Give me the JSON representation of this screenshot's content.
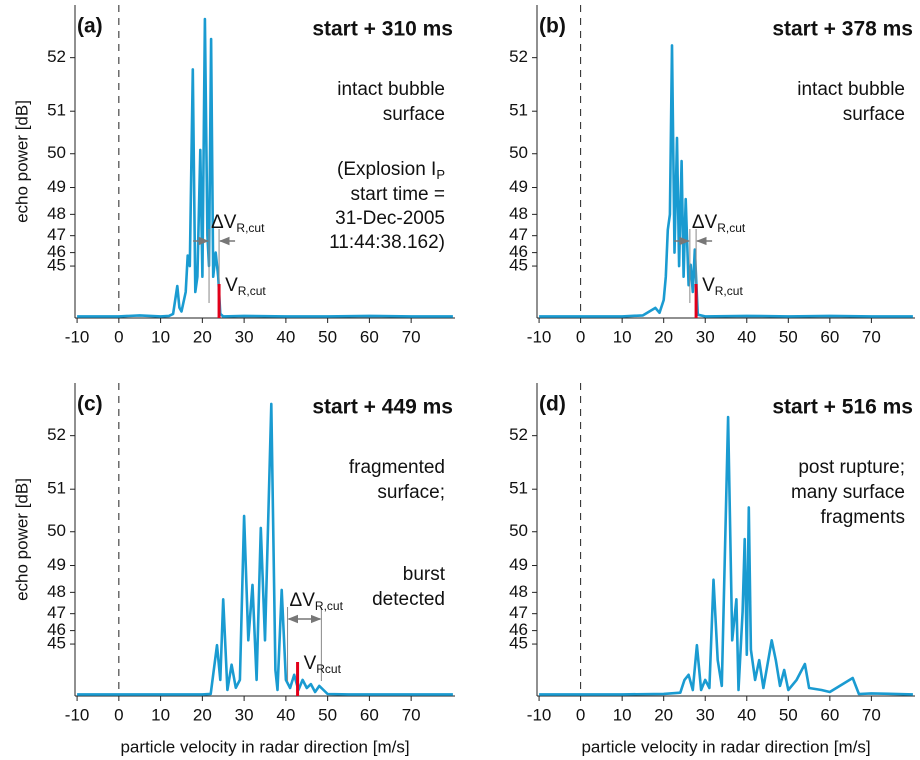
{
  "chart_data": [
    {
      "type": "line",
      "panel_label": "(a)",
      "title": "start + 310 ms",
      "note": [
        "intact bubble",
        "surface"
      ],
      "explosion": {
        "prefix": "(Explosion I",
        "sub": "P",
        "lines": [
          "start time =",
          "31-Dec-2005",
          "11:44:38.162)"
        ]
      },
      "cut": {
        "x": 24,
        "label": "V",
        "sub": "R,cut",
        "color": "#e2001a"
      },
      "delta": {
        "range": [
          21.6,
          24
        ],
        "label": "ΔV",
        "sub": "R,cut"
      },
      "xlim": [
        -10.5,
        80.5
      ],
      "ylim": [
        0,
        52.8
      ],
      "yscale": "power-db",
      "xticks": [
        -10,
        0,
        10,
        20,
        30,
        40,
        50,
        60,
        70
      ],
      "yticks": [
        45,
        46,
        47,
        48,
        49,
        50,
        51,
        52
      ],
      "ylabel": "echo power [dB]",
      "color": "#1a9bd1",
      "zero_line": true,
      "x": [
        -10,
        0,
        5,
        10,
        12,
        13,
        14,
        14.5,
        15,
        16,
        16.5,
        17,
        17.7,
        18.3,
        18.8,
        19.5,
        20,
        20.6,
        21.2,
        21.6,
        22.1,
        22.6,
        23.2,
        23.8,
        24.3,
        25,
        30,
        40,
        50,
        60,
        70,
        80
      ],
      "values": [
        30,
        30,
        32,
        30,
        31,
        34,
        42.9,
        38,
        36,
        42,
        45.8,
        45,
        51.8,
        42,
        44,
        50.1,
        44,
        52.6,
        47,
        45,
        52.3,
        44,
        46,
        44,
        34,
        30,
        31,
        30,
        30,
        31,
        30,
        30
      ]
    },
    {
      "type": "line",
      "panel_label": "(b)",
      "title": "start + 378 ms",
      "note": [
        "intact bubble",
        "surface"
      ],
      "cut": {
        "x": 27.8,
        "label": "V",
        "sub": "R,cut",
        "color": "#e2001a"
      },
      "delta": {
        "range": [
          26.3,
          27.8
        ],
        "label": "ΔV",
        "sub": "R,cut"
      },
      "xlim": [
        -10.5,
        80.5
      ],
      "ylim": [
        0,
        52.8
      ],
      "yscale": "power-db",
      "xticks": [
        -10,
        0,
        10,
        20,
        30,
        40,
        50,
        60,
        70
      ],
      "yticks": [
        45,
        46,
        47,
        48,
        49,
        50,
        51,
        52
      ],
      "color": "#1a9bd1",
      "zero_line": true,
      "x": [
        -10,
        0,
        10,
        15,
        18,
        19,
        20,
        20.5,
        21,
        21.5,
        22,
        22.6,
        23.2,
        23.7,
        24.3,
        24.8,
        25.3,
        26,
        26.5,
        27,
        27.5,
        28.2,
        30,
        40,
        50,
        60,
        70,
        80
      ],
      "values": [
        30,
        30,
        30,
        32,
        37.9,
        35,
        40.4,
        44,
        47.3,
        48,
        52.2,
        46,
        50.4,
        45,
        49.8,
        44,
        48.6,
        43,
        45.1,
        42,
        46.2,
        33,
        30,
        31,
        30,
        31,
        30,
        30
      ]
    },
    {
      "type": "line",
      "panel_label": "(c)",
      "title": "start + 449 ms",
      "note": [
        "fragmented",
        "surface;"
      ],
      "alert": [
        "burst",
        "detected"
      ],
      "alert_color": "#e2001a",
      "cut": {
        "x": 42.8,
        "label": "V",
        "sub": "Rcut",
        "color": "#e2001a"
      },
      "delta": {
        "range": [
          40.4,
          48.5
        ],
        "label": "ΔV",
        "sub": "R,cut"
      },
      "xlim": [
        -10.5,
        80.5
      ],
      "ylim": [
        0,
        52.8
      ],
      "yscale": "power-db",
      "xticks": [
        -10,
        0,
        10,
        20,
        30,
        40,
        50,
        60,
        70
      ],
      "yticks": [
        45,
        46,
        47,
        48,
        49,
        50,
        51,
        52
      ],
      "ylabel": "echo power [dB]",
      "xlabel": "particle velocity in radar direction [m/s]",
      "color": "#1a9bd1",
      "zero_line": true,
      "x": [
        -10,
        0,
        10,
        20,
        22,
        23.5,
        24.3,
        25,
        26,
        27,
        28,
        29,
        30,
        31,
        32,
        33,
        34,
        35,
        36.5,
        37.5,
        38,
        39,
        40,
        41,
        42,
        43,
        44,
        45,
        46,
        47,
        48,
        49,
        50,
        55,
        60,
        70,
        80
      ],
      "values": [
        30,
        30,
        30,
        30,
        31,
        44.9,
        39.9,
        47.7,
        35.6,
        42.8,
        37,
        39.9,
        50.4,
        45.3,
        48.3,
        39.9,
        50.1,
        45.3,
        52.5,
        42,
        35.6,
        48.1,
        39.9,
        36.9,
        41.1,
        35.6,
        39.9,
        36.9,
        38.6,
        33.9,
        37.9,
        35.6,
        30.9,
        30,
        30,
        30,
        30
      ]
    },
    {
      "type": "line",
      "panel_label": "(d)",
      "title": "start + 516 ms",
      "note": [
        "post rupture;",
        "many surface",
        "fragments"
      ],
      "xlim": [
        -10.5,
        80.5
      ],
      "ylim": [
        0,
        52.8
      ],
      "yscale": "power-db",
      "xticks": [
        -10,
        0,
        10,
        20,
        30,
        40,
        50,
        60,
        70
      ],
      "yticks": [
        45,
        46,
        47,
        48,
        49,
        50,
        51,
        52
      ],
      "xlabel": "particle velocity in radar direction [m/s]",
      "color": "#1a9bd1",
      "zero_line": true,
      "x": [
        -10,
        0,
        10,
        20,
        24,
        25,
        26,
        27,
        28,
        29,
        30,
        31,
        32,
        33,
        34,
        35.5,
        36.5,
        37.5,
        38,
        39,
        39.5,
        40,
        40.5,
        41,
        42,
        43,
        44,
        46,
        47,
        48,
        49,
        50,
        52,
        54,
        55,
        58,
        60,
        65.5,
        67,
        70,
        80
      ],
      "values": [
        30,
        30,
        30,
        31,
        33,
        39.9,
        41.1,
        35.6,
        44.9,
        35.6,
        39.9,
        36.9,
        48.5,
        43.4,
        37.9,
        52.3,
        45.3,
        47.7,
        35.6,
        47.1,
        49.8,
        44,
        50.6,
        44.5,
        39.9,
        43.4,
        36.9,
        45.3,
        43.4,
        37.9,
        42,
        35.6,
        39.9,
        42.9,
        36.9,
        35.6,
        33.9,
        40.4,
        30.9,
        32,
        30
      ]
    }
  ]
}
